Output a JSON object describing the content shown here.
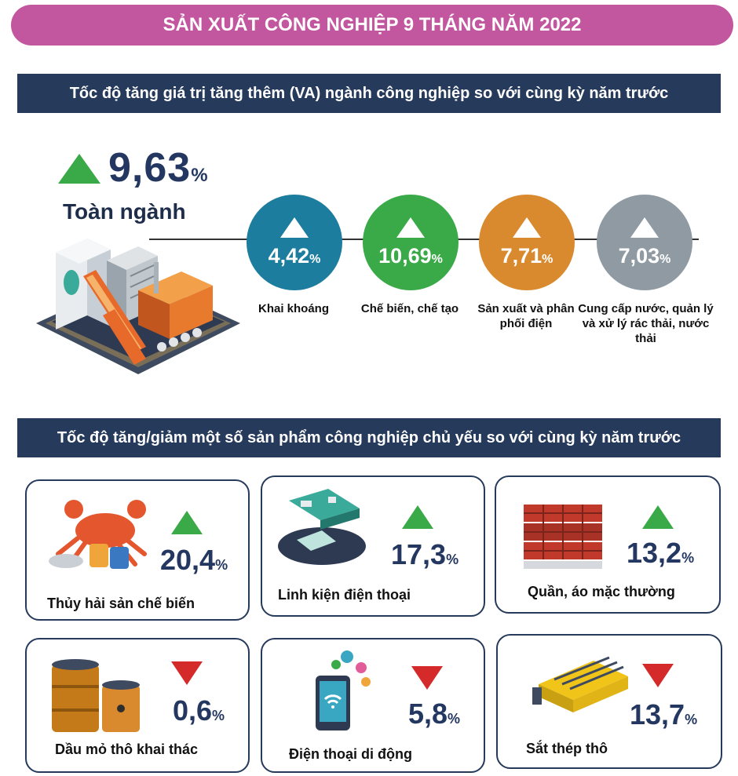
{
  "header": {
    "title": "SẢN XUẤT CÔNG NGHIỆP 9 THÁNG NĂM 2022"
  },
  "section_va": {
    "title": "Tốc độ tăng giá trị tăng thêm (VA) ngành công nghiệp so với cùng kỳ năm trước",
    "total": {
      "value": "9,63",
      "unit": "%",
      "label": "Toàn ngành",
      "trend": "up",
      "color": "#3aaa48"
    },
    "items": [
      {
        "value": "4,42",
        "unit": "%",
        "label": "Khai khoáng",
        "color": "#1d7d9e"
      },
      {
        "value": "10,69",
        "unit": "%",
        "label": "Chế biến, chế tạo",
        "color": "#3aaa48"
      },
      {
        "value": "7,71",
        "unit": "%",
        "label": "Sản xuất và phân phối điện",
        "color": "#d98a2e"
      },
      {
        "value": "7,03",
        "unit": "%",
        "label": "Cung cấp nước, quản lý và xử lý rác thải, nước thải",
        "color": "#8f9aa2"
      }
    ]
  },
  "section_products": {
    "title": "Tốc độ tăng/giảm một số sản phẩm công nghiệp chủ yếu so với cùng kỳ năm trước",
    "items": [
      {
        "value": "20,4",
        "unit": "%",
        "label": "Thủy hải sản chế biến",
        "trend": "up",
        "icon": "crab-seafood-icon"
      },
      {
        "value": "17,3",
        "unit": "%",
        "label": "Linh kiện điện thoại",
        "trend": "up",
        "icon": "phone-components-icon"
      },
      {
        "value": "13,2",
        "unit": "%",
        "label": "Quần, áo mặc thường",
        "trend": "up",
        "icon": "clothes-stack-icon"
      },
      {
        "value": "0,6",
        "unit": "%",
        "label": "Dầu mỏ thô khai thác",
        "trend": "down",
        "icon": "oil-barrel-icon"
      },
      {
        "value": "5,8",
        "unit": "%",
        "label": "Điện thoại di động",
        "trend": "down",
        "icon": "mobile-phone-icon"
      },
      {
        "value": "13,7",
        "unit": "%",
        "label": "Sắt thép thô",
        "trend": "down",
        "icon": "steel-furnace-icon"
      }
    ],
    "colors": {
      "up": "#3aaa48",
      "down": "#d42a2a"
    }
  }
}
